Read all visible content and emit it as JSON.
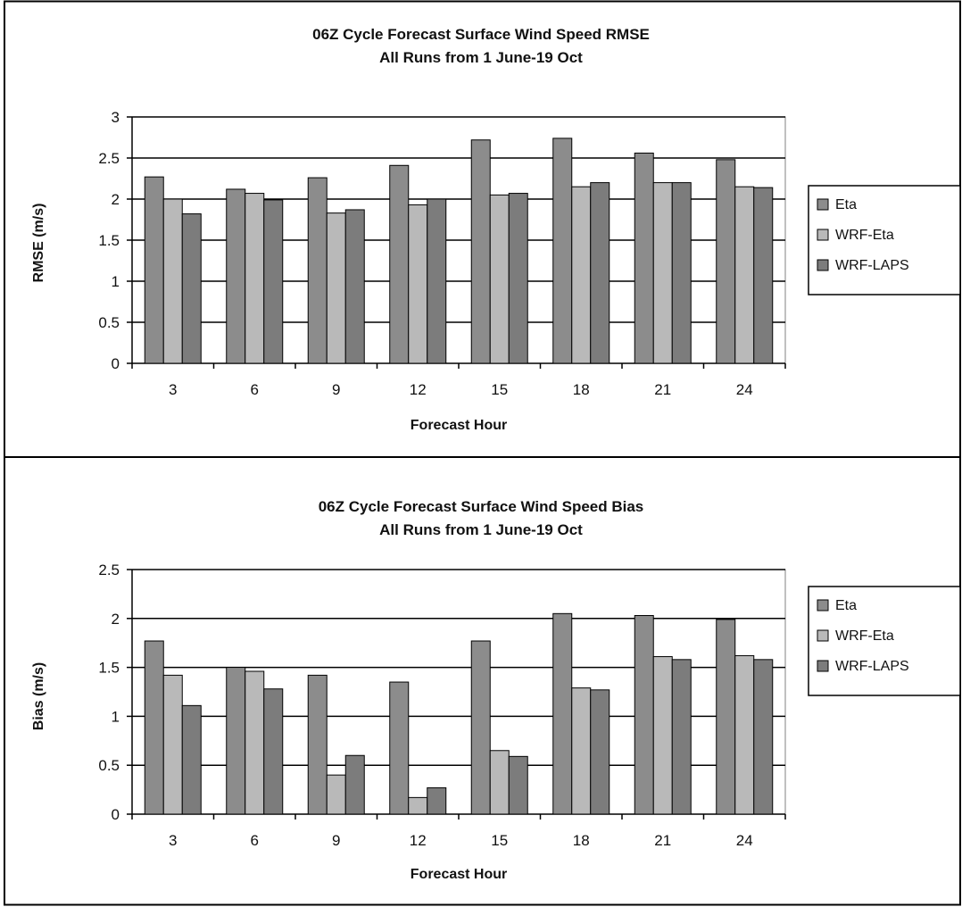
{
  "chart_data": [
    {
      "type": "bar",
      "title": "06Z Cycle Forecast Surface Wind Speed RMSE",
      "subtitle": "All Runs from 1 June-19 Oct",
      "xlabel": "Forecast Hour",
      "ylabel": "RMSE (m/s)",
      "categories": [
        "3",
        "6",
        "9",
        "12",
        "15",
        "18",
        "21",
        "24"
      ],
      "ylim": [
        0,
        3
      ],
      "yticks": [
        "0",
        "0.5",
        "1",
        "1.5",
        "2",
        "2.5",
        "3"
      ],
      "grid": true,
      "legend_position": "right",
      "series": [
        {
          "name": "Eta",
          "color": "#8c8c8c",
          "values": [
            2.27,
            2.12,
            2.26,
            2.41,
            2.72,
            2.74,
            2.56,
            2.48
          ]
        },
        {
          "name": "WRF-Eta",
          "color": "#b9b9b9",
          "values": [
            2.0,
            2.07,
            1.83,
            1.93,
            2.05,
            2.15,
            2.2,
            2.15
          ]
        },
        {
          "name": "WRF-LAPS",
          "color": "#7c7c7c",
          "values": [
            1.82,
            1.99,
            1.87,
            2.0,
            2.07,
            2.2,
            2.2,
            2.14
          ]
        }
      ]
    },
    {
      "type": "bar",
      "title": "06Z Cycle Forecast Surface Wind Speed Bias",
      "subtitle": "All Runs from 1 June-19 Oct",
      "xlabel": "Forecast Hour",
      "ylabel": "Bias (m/s)",
      "categories": [
        "3",
        "6",
        "9",
        "12",
        "15",
        "18",
        "21",
        "24"
      ],
      "ylim": [
        0,
        2.5
      ],
      "yticks": [
        "0",
        "0.5",
        "1",
        "1.5",
        "2",
        "2.5"
      ],
      "grid": true,
      "legend_position": "right",
      "series": [
        {
          "name": "Eta",
          "color": "#8c8c8c",
          "values": [
            1.77,
            1.5,
            1.42,
            1.35,
            1.77,
            2.05,
            2.03,
            1.99
          ]
        },
        {
          "name": "WRF-Eta",
          "color": "#b9b9b9",
          "values": [
            1.42,
            1.46,
            0.4,
            0.17,
            0.65,
            1.29,
            1.61,
            1.62
          ]
        },
        {
          "name": "WRF-LAPS",
          "color": "#7c7c7c",
          "values": [
            1.11,
            1.28,
            0.6,
            0.27,
            0.59,
            1.27,
            1.58,
            1.58
          ]
        }
      ]
    }
  ]
}
